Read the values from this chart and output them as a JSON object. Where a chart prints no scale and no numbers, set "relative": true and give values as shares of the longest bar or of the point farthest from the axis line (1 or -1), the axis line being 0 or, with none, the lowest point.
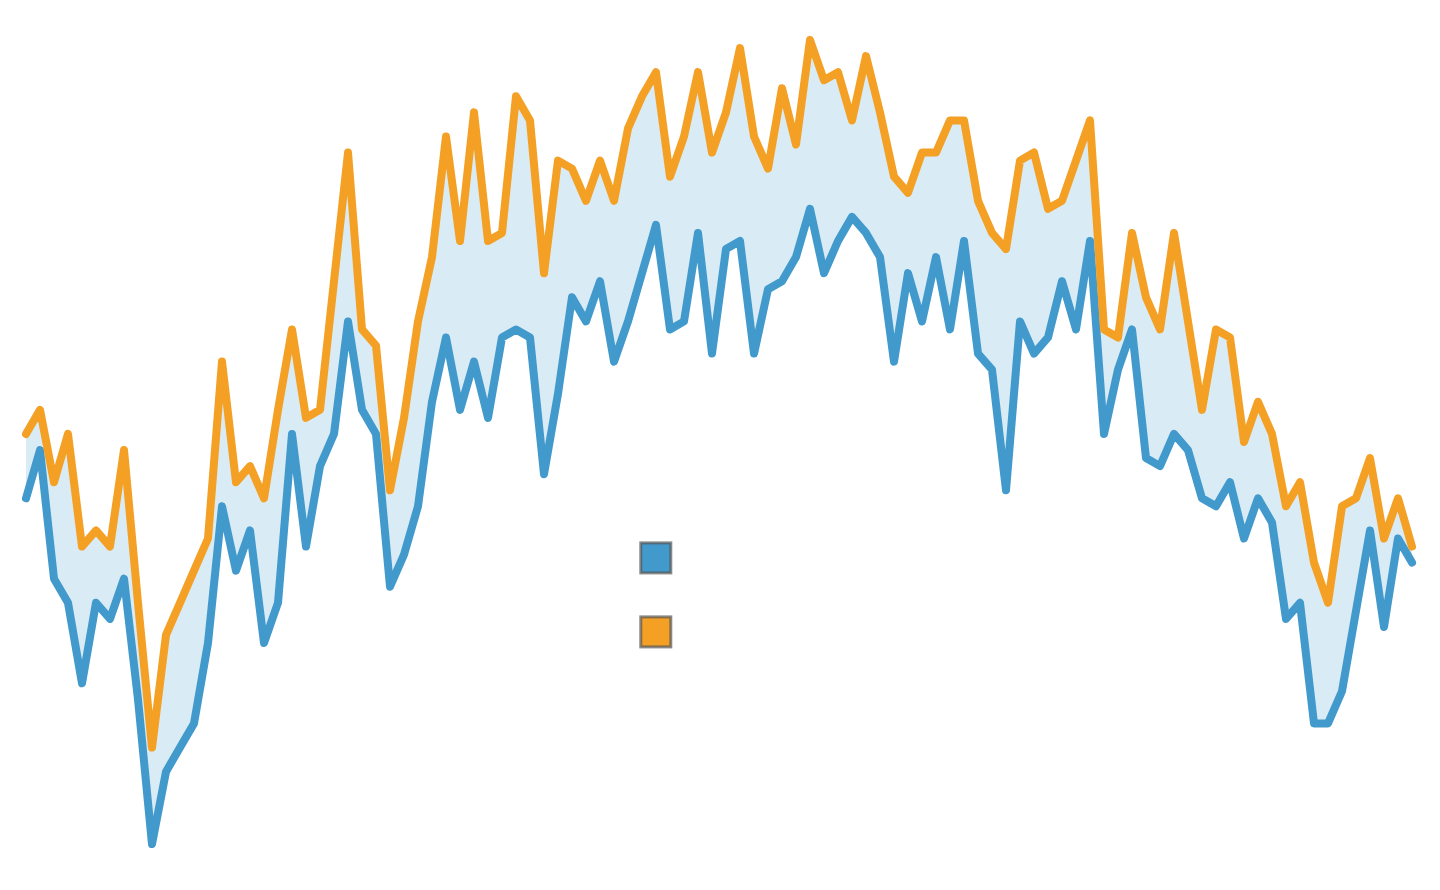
{
  "chart_data": {
    "type": "line",
    "relative": true,
    "categories": [
      null,
      null,
      null,
      null,
      null,
      null,
      null,
      null,
      null,
      null,
      null,
      null,
      null,
      null,
      null,
      null,
      null,
      null,
      null,
      null,
      null,
      null,
      null,
      null,
      null,
      null,
      null,
      null,
      null,
      null,
      null,
      null,
      null,
      null,
      null,
      null,
      null,
      null,
      null,
      null,
      null,
      null,
      null,
      null,
      null,
      null,
      null,
      null,
      null,
      null,
      null,
      null,
      null,
      null,
      null,
      null,
      null,
      null,
      null,
      null,
      null,
      null,
      null,
      null,
      null,
      null,
      null,
      null,
      null,
      null,
      null,
      null,
      null,
      null,
      null,
      null,
      null,
      null,
      null,
      null,
      null,
      null,
      null,
      null,
      null,
      null,
      null,
      null,
      null,
      null,
      null,
      null,
      null,
      null,
      null,
      null,
      null,
      null,
      null,
      null
    ],
    "series": [
      {
        "color": "#4299cc",
        "values": [
          0.43,
          0.49,
          0.33,
          0.3,
          0.2,
          0.3,
          0.28,
          0.33,
          0.18,
          0,
          0.09,
          0.12,
          0.15,
          0.25,
          0.42,
          0.34,
          0.39,
          0.25,
          0.3,
          0.51,
          0.37,
          0.47,
          0.51,
          0.65,
          0.54,
          0.51,
          0.32,
          0.36,
          0.42,
          0.55,
          0.63,
          0.54,
          0.6,
          0.53,
          0.63,
          0.64,
          0.63,
          0.46,
          0.56,
          0.68,
          0.65,
          0.7,
          0.6,
          0.65,
          0.71,
          0.77,
          0.64,
          0.65,
          0.76,
          0.61,
          0.74,
          0.75,
          0.61,
          0.69,
          0.7,
          0.73,
          0.79,
          0.71,
          0.75,
          0.78,
          0.76,
          0.73,
          0.6,
          0.71,
          0.65,
          0.73,
          0.64,
          0.75,
          0.61,
          0.59,
          0.44,
          0.65,
          0.61,
          0.63,
          0.7,
          0.64,
          0.75,
          0.51,
          0.59,
          0.64,
          0.48,
          0.47,
          0.51,
          0.49,
          0.43,
          0.42,
          0.45,
          0.38,
          0.43,
          0.4,
          0.28,
          0.3,
          0.15,
          0.15,
          0.19,
          0.29,
          0.39,
          0.27,
          0.38,
          0.35
        ],
        "lower": [
          0.43,
          0.49,
          0.33,
          0.3,
          0.2,
          0.3,
          0.28,
          0.33,
          0.18,
          0,
          0.09,
          0.12,
          0.15,
          0.25,
          0.42,
          0.34,
          0.39,
          0.25,
          0.3,
          0.51,
          0.37,
          0.47,
          0.51,
          0.65,
          0.54,
          0.51,
          0.32,
          0.36,
          0.42,
          0.55,
          0.63,
          0.54,
          0.6,
          0.53,
          0.63,
          0.64,
          0.63,
          0.46,
          0.56,
          0.68,
          0.65,
          0.7,
          0.6,
          0.65,
          0.71,
          0.77,
          0.64,
          0.65,
          0.76,
          0.61,
          0.74,
          0.75,
          0.61,
          0.69,
          0.7,
          0.73,
          0.79,
          0.71,
          0.75,
          0.78,
          0.76,
          0.73,
          0.6,
          0.71,
          0.65,
          0.73,
          0.64,
          0.75,
          0.61,
          0.59,
          0.44,
          0.65,
          0.61,
          0.63,
          0.7,
          0.64,
          0.75,
          0.51,
          0.59,
          0.64,
          0.48,
          0.47,
          0.51,
          0.49,
          0.43,
          0.42,
          0.45,
          0.38,
          0.43,
          0.4,
          0.28,
          0.3,
          0.15,
          0.15,
          0.19,
          0.29,
          0.39,
          0.27,
          0.38,
          0.35
        ],
        "upper": [
          0.51,
          0.54,
          0.45,
          0.51,
          0.37,
          0.39,
          0.37,
          0.49,
          0.3,
          0.12,
          0.26,
          0.3,
          0.34,
          0.38,
          0.6,
          0.45,
          0.47,
          0.43,
          0.54,
          0.64,
          0.53,
          0.54,
          0.7,
          0.86,
          0.64,
          0.62,
          0.44,
          0.53,
          0.65,
          0.73,
          0.88,
          0.75,
          0.91,
          0.75,
          0.76,
          0.93,
          0.9,
          0.71,
          0.85,
          0.84,
          0.8,
          0.85,
          0.8,
          0.89,
          0.93,
          0.96,
          0.83,
          0.88,
          0.96,
          0.86,
          0.91,
          0.99,
          0.88,
          0.84,
          0.94,
          0.87,
          1,
          0.95,
          0.96,
          0.9,
          0.98,
          0.91,
          0.83,
          0.81,
          0.86,
          0.86,
          0.9,
          0.9,
          0.8,
          0.76,
          0.74,
          0.85,
          0.86,
          0.79,
          0.8,
          0.85,
          0.9,
          0.64,
          0.63,
          0.76,
          0.68,
          0.64,
          0.76,
          0.65,
          0.54,
          0.64,
          0.63,
          0.5,
          0.55,
          0.51,
          0.42,
          0.45,
          0.35,
          0.3,
          0.42,
          0.43,
          0.48,
          0.38,
          0.43,
          0.37
        ]
      },
      {
        "color": "#f4a025",
        "values": [
          0.51,
          0.54,
          0.45,
          0.51,
          0.37,
          0.39,
          0.37,
          0.49,
          0.3,
          0.12,
          0.26,
          0.3,
          0.34,
          0.38,
          0.6,
          0.45,
          0.47,
          0.43,
          0.54,
          0.64,
          0.53,
          0.54,
          0.7,
          0.86,
          0.64,
          0.62,
          0.44,
          0.53,
          0.65,
          0.73,
          0.88,
          0.75,
          0.91,
          0.75,
          0.76,
          0.93,
          0.9,
          0.71,
          0.85,
          0.84,
          0.8,
          0.85,
          0.8,
          0.89,
          0.93,
          0.96,
          0.83,
          0.88,
          0.96,
          0.86,
          0.91,
          0.99,
          0.88,
          0.84,
          0.94,
          0.87,
          1,
          0.95,
          0.96,
          0.9,
          0.98,
          0.91,
          0.83,
          0.81,
          0.86,
          0.86,
          0.9,
          0.9,
          0.8,
          0.76,
          0.74,
          0.85,
          0.86,
          0.79,
          0.8,
          0.85,
          0.9,
          0.64,
          0.63,
          0.76,
          0.68,
          0.64,
          0.76,
          0.65,
          0.54,
          0.64,
          0.63,
          0.5,
          0.55,
          0.51,
          0.42,
          0.45,
          0.35,
          0.3,
          0.42,
          0.43,
          0.48,
          0.38,
          0.43,
          0.37
        ]
      }
    ]
  }
}
